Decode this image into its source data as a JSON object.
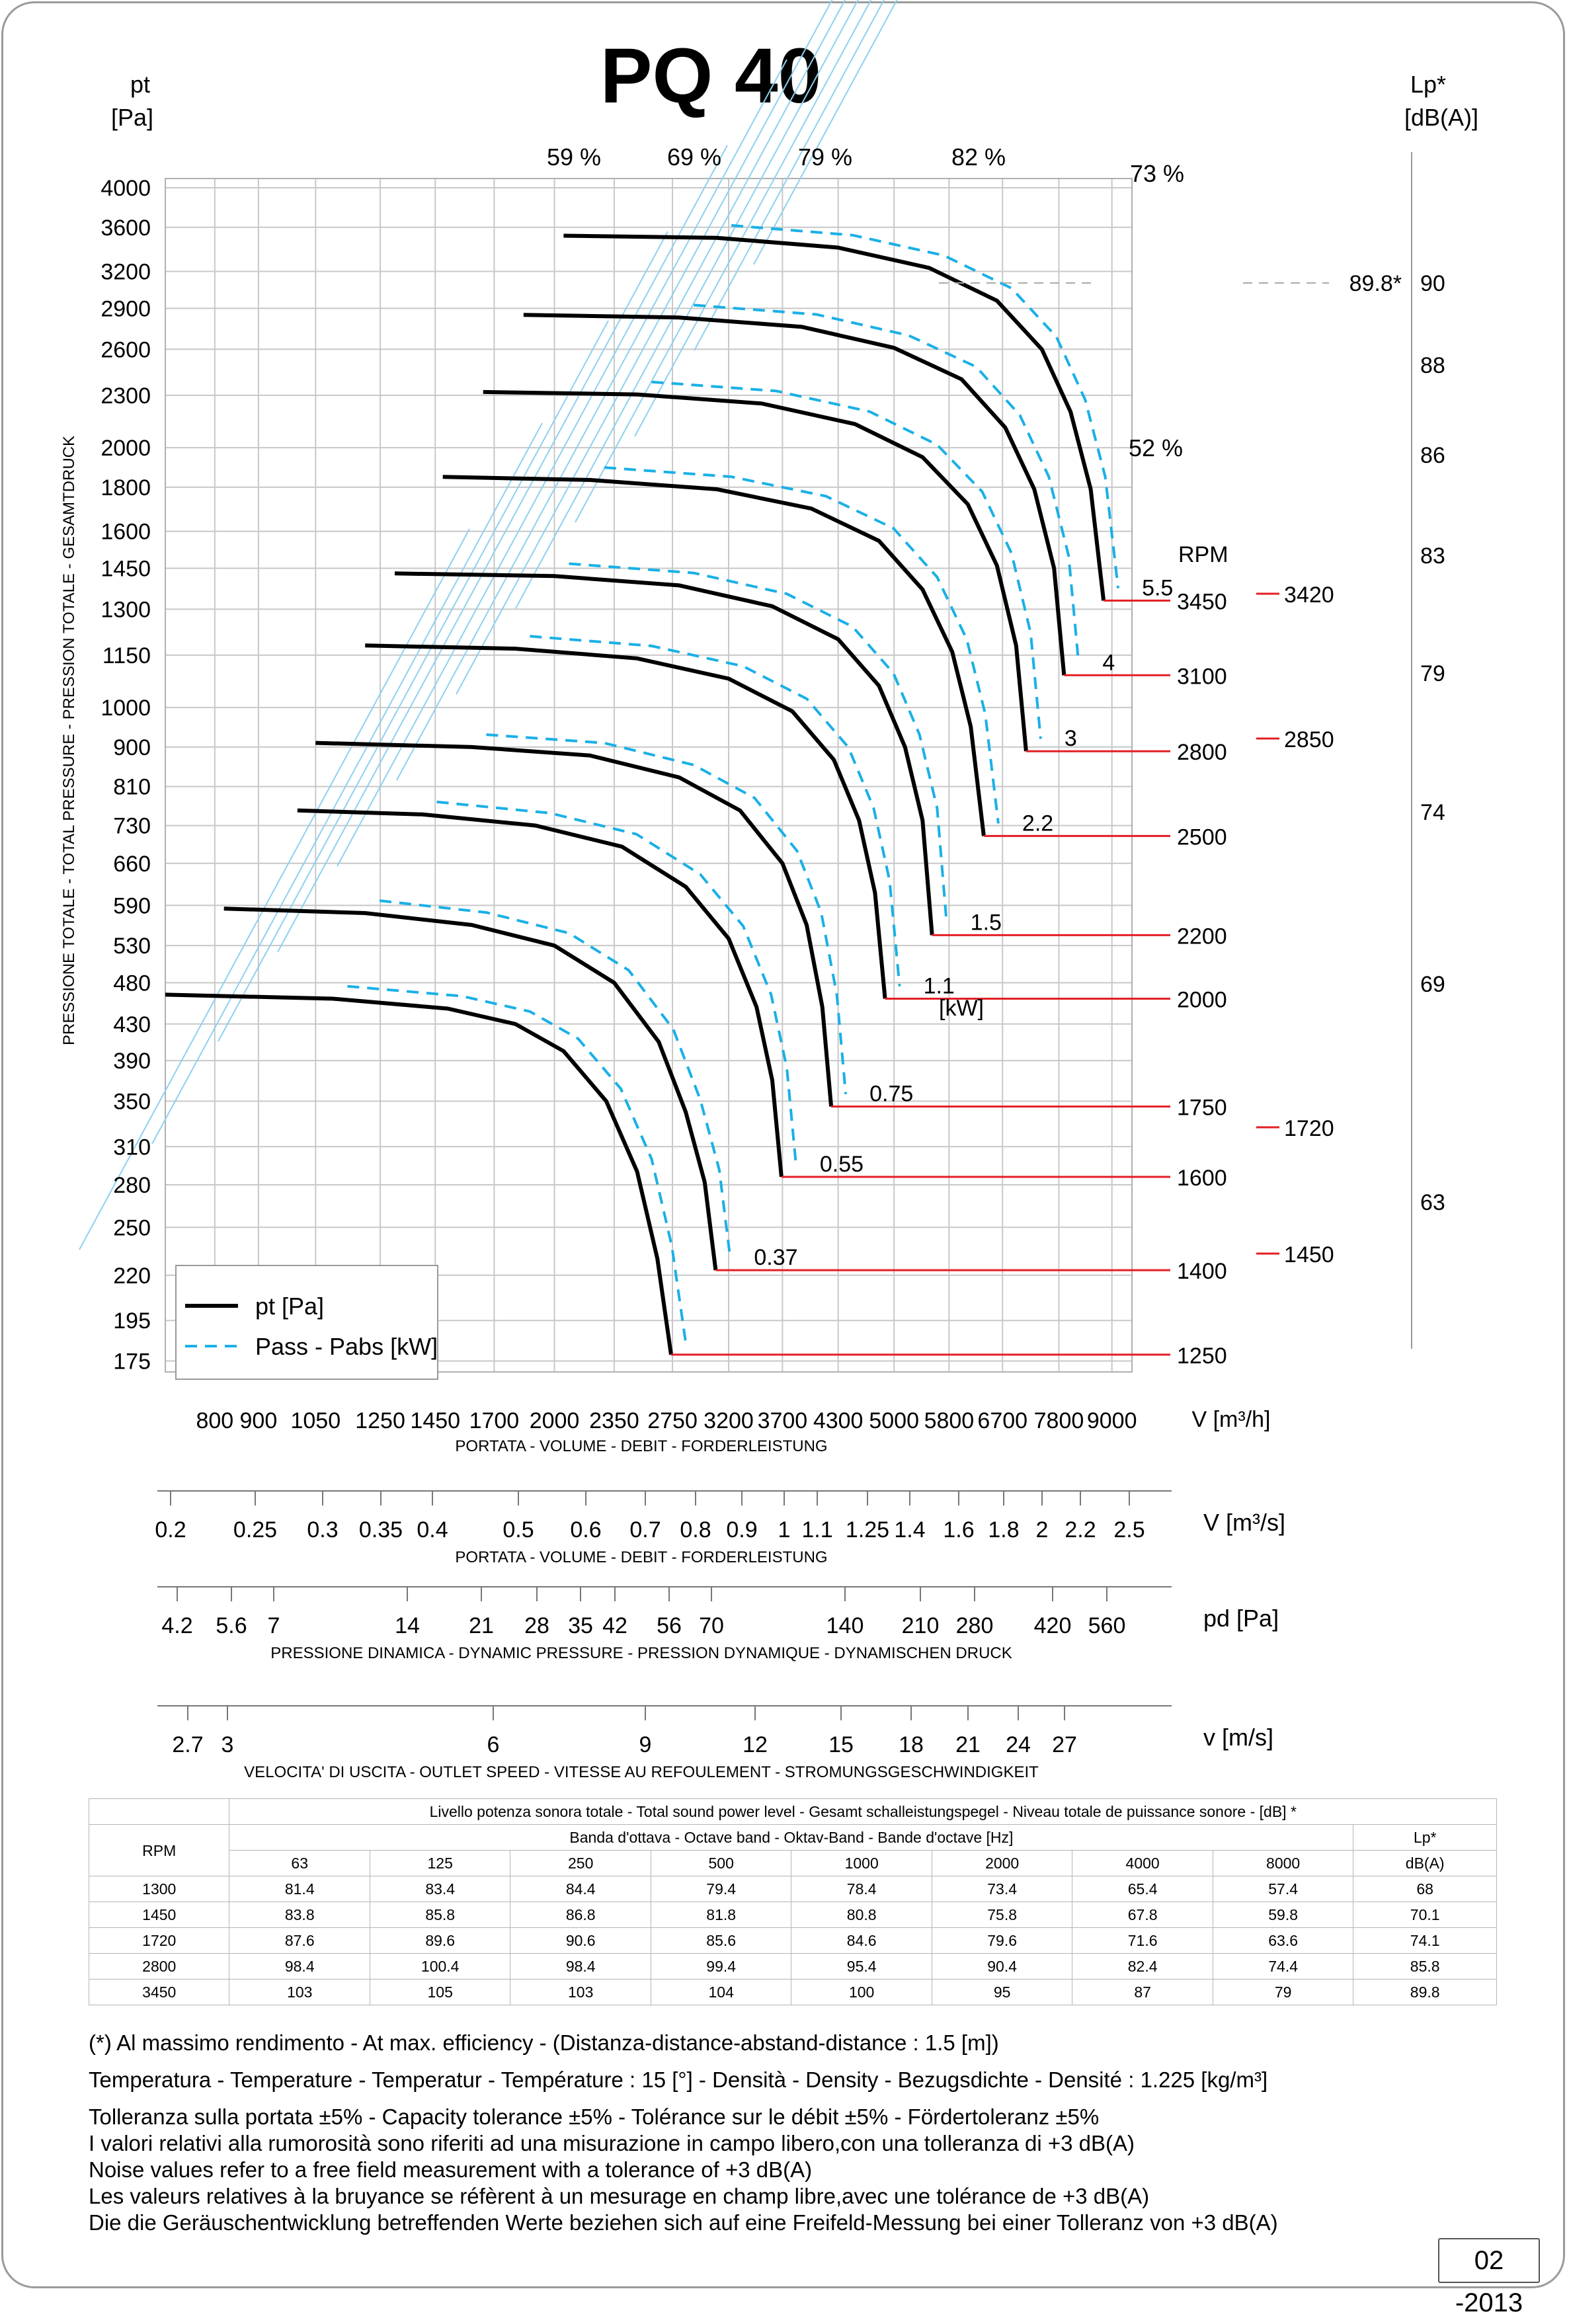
{
  "title": "PQ 40",
  "colors": {
    "pt_curve": "#000000",
    "power_curve": "#1ab0e6",
    "grid": "#c8c8c8",
    "efficiency_line": "#8ed0ef",
    "rpm_marker": "#e31e24"
  },
  "chart_data": {
    "type": "line",
    "title": "PQ 40",
    "ylabel_unit": "pt\n[Pa]",
    "ylabel_side": "PRESSIONE TOTALE - TOTAL PRESSURE - PRESSION TOTALE - GESAMTDRUCK",
    "xlabel_unit": "V [m³/h]",
    "xlabel": "PORTATA - VOLUME - DEBIT - FORDERLEISTUNG",
    "right_axis_label": "Lp*\n[dB(A)]",
    "y_scale": "log",
    "x_scale": "log",
    "xlim": [
      700,
      9500
    ],
    "ylim": [
      170,
      4100
    ],
    "x_ticks": [
      800,
      900,
      1050,
      1250,
      1450,
      1700,
      2000,
      2350,
      2750,
      3200,
      3700,
      4300,
      5000,
      5800,
      6700,
      7800,
      9000
    ],
    "y_ticks": [
      175,
      195,
      220,
      250,
      280,
      310,
      350,
      390,
      430,
      480,
      530,
      590,
      660,
      730,
      810,
      900,
      1000,
      1150,
      1300,
      1450,
      1600,
      1800,
      2000,
      2300,
      2600,
      2900,
      3200,
      3600,
      4000
    ],
    "efficiency_labels": [
      "59 %",
      "69 %",
      "79 %",
      "82 %",
      "73 %",
      "52 %"
    ],
    "series": [
      {
        "rpm": 1250,
        "power_kW": "",
        "pt_curve": [
          [
            700,
            465
          ],
          [
            1100,
            460
          ],
          [
            1500,
            448
          ],
          [
            1800,
            430
          ],
          [
            2050,
            400
          ],
          [
            2300,
            350
          ],
          [
            2500,
            290
          ],
          [
            2640,
            230
          ],
          [
            2740,
            178
          ]
        ]
      },
      {
        "rpm": 1400,
        "power_kW": "0.37",
        "pt_curve": [
          [
            820,
            585
          ],
          [
            1200,
            578
          ],
          [
            1600,
            560
          ],
          [
            2000,
            530
          ],
          [
            2350,
            480
          ],
          [
            2650,
            410
          ],
          [
            2850,
            340
          ],
          [
            3000,
            282
          ],
          [
            3090,
            223
          ]
        ]
      },
      {
        "rpm": 1600,
        "power_kW": "0.55",
        "pt_curve": [
          [
            1000,
            760
          ],
          [
            1400,
            752
          ],
          [
            1900,
            730
          ],
          [
            2400,
            690
          ],
          [
            2850,
            620
          ],
          [
            3200,
            540
          ],
          [
            3450,
            450
          ],
          [
            3600,
            370
          ],
          [
            3690,
            286
          ]
        ]
      },
      {
        "rpm": 1750,
        "power_kW": "0.75",
        "pt_curve": [
          [
            1050,
            910
          ],
          [
            1600,
            900
          ],
          [
            2200,
            880
          ],
          [
            2800,
            830
          ],
          [
            3300,
            760
          ],
          [
            3700,
            660
          ],
          [
            3950,
            560
          ],
          [
            4120,
            450
          ],
          [
            4220,
            345
          ]
        ]
      },
      {
        "rpm": 2000,
        "power_kW": "1.1",
        "pt_curve": [
          [
            1200,
            1180
          ],
          [
            1800,
            1170
          ],
          [
            2500,
            1140
          ],
          [
            3200,
            1080
          ],
          [
            3800,
            990
          ],
          [
            4250,
            870
          ],
          [
            4550,
            740
          ],
          [
            4750,
            610
          ],
          [
            4880,
            460
          ]
        ]
      },
      {
        "rpm": 2200,
        "power_kW": "1.5",
        "pt_curve": [
          [
            1300,
            1430
          ],
          [
            2000,
            1420
          ],
          [
            2800,
            1385
          ],
          [
            3600,
            1310
          ],
          [
            4300,
            1200
          ],
          [
            4800,
            1060
          ],
          [
            5150,
            900
          ],
          [
            5400,
            740
          ],
          [
            5540,
            545
          ]
        ]
      },
      {
        "rpm": 2500,
        "power_kW": "2.2",
        "pt_curve": [
          [
            1480,
            1850
          ],
          [
            2200,
            1835
          ],
          [
            3100,
            1790
          ],
          [
            4000,
            1700
          ],
          [
            4800,
            1560
          ],
          [
            5400,
            1370
          ],
          [
            5850,
            1160
          ],
          [
            6150,
            950
          ],
          [
            6370,
            710
          ]
        ]
      },
      {
        "rpm": 2800,
        "power_kW": "3",
        "pt_curve": [
          [
            1650,
            2320
          ],
          [
            2500,
            2305
          ],
          [
            3500,
            2250
          ],
          [
            4500,
            2130
          ],
          [
            5400,
            1950
          ],
          [
            6100,
            1720
          ],
          [
            6600,
            1460
          ],
          [
            6950,
            1180
          ],
          [
            7140,
            890
          ]
        ]
      },
      {
        "rpm": 3100,
        "power_kW": "4",
        "pt_curve": [
          [
            1840,
            2850
          ],
          [
            2800,
            2830
          ],
          [
            3900,
            2760
          ],
          [
            5000,
            2610
          ],
          [
            6000,
            2400
          ],
          [
            6750,
            2110
          ],
          [
            7300,
            1790
          ],
          [
            7700,
            1450
          ],
          [
            7910,
            1090
          ]
        ]
      },
      {
        "rpm": 3450,
        "power_kW": "5.5",
        "pt_curve": [
          [
            2050,
            3520
          ],
          [
            3100,
            3500
          ],
          [
            4300,
            3410
          ],
          [
            5500,
            3230
          ],
          [
            6600,
            2960
          ],
          [
            7450,
            2600
          ],
          [
            8050,
            2200
          ],
          [
            8500,
            1790
          ],
          [
            8800,
            1330
          ]
        ]
      }
    ],
    "rpm_labels": [
      "1250",
      "1400",
      "1600",
      "1750",
      "2000",
      "2200",
      "2500",
      "2800",
      "3100",
      "3450"
    ],
    "rpm_header": "RPM",
    "rpm_right_labels": [
      "3420",
      "2850",
      "1720",
      "1450"
    ],
    "power_unit": "[kW]",
    "legend": [
      "pt [Pa]",
      "Pass - Pabs [kW]"
    ],
    "lp_ticks": [
      "90",
      "88",
      "86",
      "83",
      "79",
      "74",
      "69",
      "63"
    ],
    "lp_max_label": "89.8*",
    "secondary_axes": [
      {
        "unit": "V  [m³/s]",
        "label": "PORTATA - VOLUME - DEBIT - FORDERLEISTUNG",
        "ticks": [
          "0.2",
          "0.25",
          "0.3",
          "0.35",
          "0.4",
          "0.5",
          "0.6",
          "0.7",
          "0.8",
          "0.9",
          "1",
          "1.1",
          "1.25",
          "1.4",
          "1.6",
          "1.8",
          "2",
          "2.2",
          "2.5"
        ]
      },
      {
        "unit": "pd  [Pa]",
        "label": "PRESSIONE DINAMICA - DYNAMIC PRESSURE - PRESSION DYNAMIQUE - DYNAMISCHEN DRUCK",
        "ticks": [
          "4.2",
          "5.6",
          "7",
          "14",
          "21",
          "28",
          "35",
          "42",
          "56",
          "70",
          "140",
          "210",
          "280",
          "420",
          "560"
        ]
      },
      {
        "unit": "v  [m/s]",
        "label": "VELOCITA' DI USCITA - OUTLET SPEED - VITESSE AU REFOULEMENT - STROMUNGSGESCHWINDIGKEIT",
        "ticks": [
          "2.7",
          "3",
          "6",
          "9",
          "12",
          "15",
          "18",
          "21",
          "24",
          "27"
        ]
      }
    ]
  },
  "sound_table": {
    "title": "Livello potenza sonora totale - Total sound power level - Gesamt schalleistungspegel - Niveau totale de puissance sonore - [dB]   *",
    "band_header": "Banda d'ottava - Octave band - Oktav-Band - Bande d'octave [Hz]",
    "rpm_header": "RPM",
    "lp_header": "Lp*",
    "lp_unit": "dB(A)",
    "bands": [
      "63",
      "125",
      "250",
      "500",
      "1000",
      "2000",
      "4000",
      "8000"
    ],
    "rows": [
      [
        "1300",
        "81.4",
        "83.4",
        "84.4",
        "79.4",
        "78.4",
        "73.4",
        "65.4",
        "57.4",
        "68"
      ],
      [
        "1450",
        "83.8",
        "85.8",
        "86.8",
        "81.8",
        "80.8",
        "75.8",
        "67.8",
        "59.8",
        "70.1"
      ],
      [
        "1720",
        "87.6",
        "89.6",
        "90.6",
        "85.6",
        "84.6",
        "79.6",
        "71.6",
        "63.6",
        "74.1"
      ],
      [
        "2800",
        "98.4",
        "100.4",
        "98.4",
        "99.4",
        "95.4",
        "90.4",
        "82.4",
        "74.4",
        "85.8"
      ],
      [
        "3450",
        "103",
        "105",
        "103",
        "104",
        "100",
        "95",
        "87",
        "79",
        "89.8"
      ]
    ]
  },
  "notes": {
    "n1": "(*) Al massimo rendimento - At max. efficiency - (Distanza-distance-abstand-distance : 1.5 [m])",
    "n2": "Temperatura - Temperature - Temperatur - Température : 15 [°]  -  Densità - Density - Bezugsdichte - Densité : 1.225 [kg/m³]",
    "n3": "Tolleranza sulla portata  ±5% - Capacity tolerance ±5% - Tolérance sur le débit ±5% - Fördertoleranz ±5%",
    "n4": "I valori relativi alla rumorosità sono riferiti ad una misurazione in campo libero,con una tolleranza di +3 dB(A)",
    "n5": "Noise values refer to a free field measurement with a tolerance of +3 dB(A)",
    "n6": "Les valeurs relatives à la bruyance se réfèrent à un mesurage en champ libre,avec une tolérance de +3 dB(A)",
    "n7": "Die die Geräuschentwicklung betreffenden Werte beziehen sich auf eine Freifeld-Messung bei einer Tolleranz von +3 dB(A)"
  },
  "date_code": "02 -2013"
}
